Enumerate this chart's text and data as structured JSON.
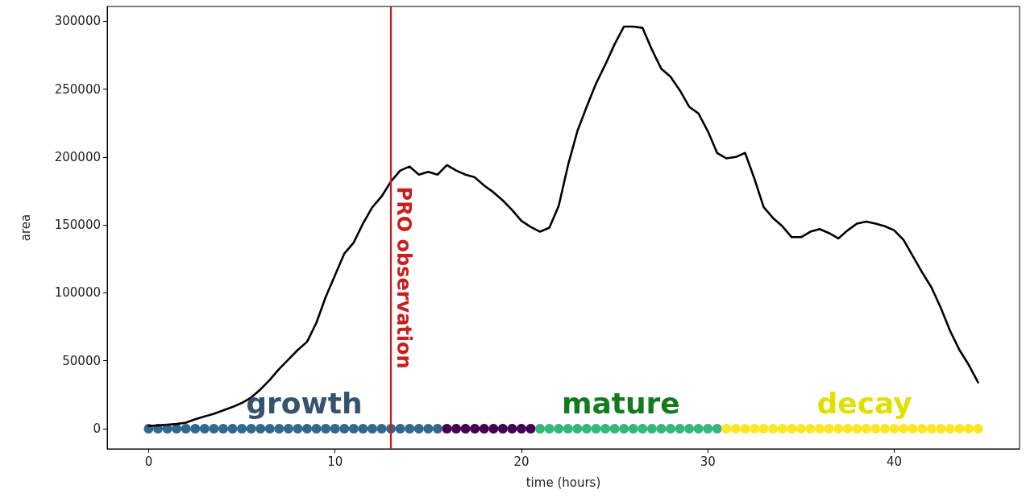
{
  "chart_data": {
    "type": "line",
    "xlabel": "time (hours)",
    "ylabel": "area",
    "xlim": [
      -2.225,
      46.725
    ],
    "ylim": [
      -14800,
      310800
    ],
    "xticks": [
      0,
      10,
      20,
      30,
      40
    ],
    "yticks": [
      0,
      50000,
      100000,
      150000,
      200000,
      250000,
      300000
    ],
    "grid": false,
    "marker": "none",
    "line_style": "solid",
    "x": [
      0,
      0.5,
      1,
      1.5,
      2,
      2.5,
      3,
      3.5,
      4,
      4.5,
      5,
      5.5,
      6,
      6.5,
      7,
      7.5,
      8,
      8.5,
      9,
      9.5,
      10,
      10.5,
      11,
      11.5,
      12,
      12.5,
      13,
      13.5,
      14,
      14.5,
      15,
      15.5,
      16,
      16.5,
      17,
      17.5,
      18,
      18.5,
      19,
      19.5,
      20,
      20.5,
      21,
      21.5,
      22,
      22.5,
      23,
      23.5,
      24,
      24.5,
      25,
      25.5,
      26,
      26.5,
      27,
      27.5,
      28,
      28.5,
      29,
      29.5,
      30,
      30.5,
      31,
      31.5,
      32,
      32.5,
      33,
      33.5,
      34,
      34.5,
      35,
      35.5,
      36,
      36.5,
      37,
      37.5,
      38,
      38.5,
      39,
      39.5,
      40,
      40.5,
      41,
      41.5,
      42,
      42.5,
      43,
      43.5,
      44,
      44.5
    ],
    "series": [
      {
        "color": "#000000",
        "values": [
          2000,
          2500,
          3000,
          3500,
          4500,
          7000,
          9000,
          11000,
          13500,
          16000,
          19000,
          23000,
          29000,
          36000,
          44000,
          51000,
          58000,
          64000,
          78000,
          97000,
          113000,
          129000,
          137000,
          151000,
          163000,
          171000,
          182000,
          190000,
          193000,
          187000,
          189000,
          187000,
          194000,
          190000,
          187000,
          185000,
          179000,
          174000,
          168000,
          161000,
          153000,
          148500,
          145000,
          148000,
          164000,
          194000,
          219000,
          237000,
          254000,
          268000,
          283000,
          296000,
          296000,
          295000,
          279000,
          265000,
          259000,
          249000,
          237000,
          232000,
          219000,
          203000,
          199000,
          200000,
          203000,
          184000,
          163000,
          155000,
          149000,
          141000,
          141000,
          145000,
          147000,
          144000,
          140000,
          146000,
          151000,
          152500,
          151000,
          149000,
          146000,
          139000,
          127000,
          115000,
          104000,
          89000,
          72000,
          58000,
          47000,
          34000
        ]
      },
      {
        "type": "scatter",
        "marker": "circle",
        "color": "#31688e",
        "x": [
          0,
          0.5,
          1,
          1.5,
          2,
          2.5,
          3,
          3.5,
          4,
          4.5,
          5,
          5.5,
          6,
          6.5,
          7,
          7.5,
          8,
          8.5,
          9,
          9.5,
          10,
          10.5,
          11,
          11.5,
          12,
          12.5,
          13,
          13.5,
          14,
          14.5,
          15,
          15.5
        ],
        "values": [
          0,
          0,
          0,
          0,
          0,
          0,
          0,
          0,
          0,
          0,
          0,
          0,
          0,
          0,
          0,
          0,
          0,
          0,
          0,
          0,
          0,
          0,
          0,
          0,
          0,
          0,
          0,
          0,
          0,
          0,
          0,
          0
        ]
      },
      {
        "type": "scatter",
        "marker": "circle",
        "color": "#440154",
        "x": [
          16,
          16.5,
          17,
          17.5,
          18,
          18.5,
          19,
          19.5,
          20,
          20.5
        ],
        "values": [
          0,
          0,
          0,
          0,
          0,
          0,
          0,
          0,
          0,
          0
        ]
      },
      {
        "type": "scatter",
        "marker": "circle",
        "color": "#35b779",
        "x": [
          21,
          21.5,
          22,
          22.5,
          23,
          23.5,
          24,
          24.5,
          25,
          25.5,
          26,
          26.5,
          27,
          27.5,
          28,
          28.5,
          29,
          29.5,
          30,
          30.5
        ],
        "values": [
          0,
          0,
          0,
          0,
          0,
          0,
          0,
          0,
          0,
          0,
          0,
          0,
          0,
          0,
          0,
          0,
          0,
          0,
          0,
          0
        ]
      },
      {
        "type": "scatter",
        "marker": "circle",
        "color": "#fde725",
        "x": [
          31,
          31.5,
          32,
          32.5,
          33,
          33.5,
          34,
          34.5,
          35,
          35.5,
          36,
          36.5,
          37,
          37.5,
          38,
          38.5,
          39,
          39.5,
          40,
          40.5,
          41,
          41.5,
          42,
          42.5,
          43,
          43.5,
          44,
          44.5
        ],
        "values": [
          0,
          0,
          0,
          0,
          0,
          0,
          0,
          0,
          0,
          0,
          0,
          0,
          0,
          0,
          0,
          0,
          0,
          0,
          0,
          0,
          0,
          0,
          0,
          0,
          0,
          0,
          0,
          0
        ]
      }
    ],
    "ref_lines": [
      {
        "axis": "x",
        "value": 13,
        "label": "PRO observation",
        "color": "#c81e1e"
      }
    ],
    "annotations": [
      "growth",
      "mature",
      "decay"
    ]
  }
}
